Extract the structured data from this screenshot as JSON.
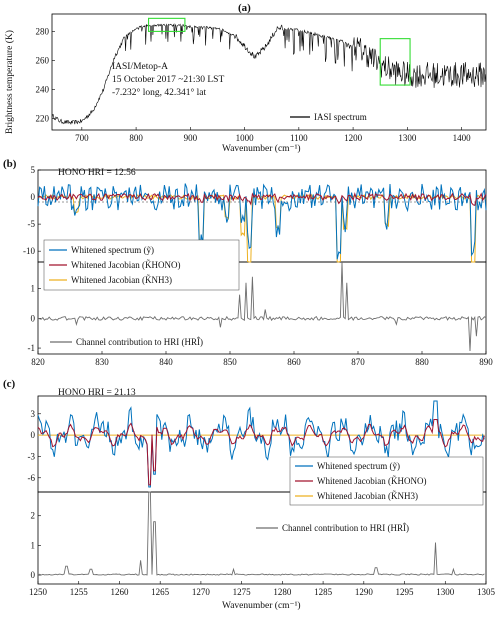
{
  "colors": {
    "spectrum": "#0072BD",
    "jac_hono": "#A2142F",
    "jac_nh3": "#EDB120",
    "contrib": "#6E6E6E",
    "iasi": "#000000",
    "highlight": "#33DD33"
  },
  "panels": {
    "a": {
      "label": "(a)",
      "ylabel": "Brightness temperature (K)",
      "xlabel": "Wavenumber (cm⁻¹)",
      "info_line1": "IASI/Metop-A",
      "info_line2": "15 October 2017  ~21:30 LST",
      "info_line3": "-7.232° long, 42.341° lat",
      "legend": "IASI spectrum"
    },
    "b": {
      "label": "(b)",
      "hri_text": "HONO HRI = 12.56",
      "legend_spectrum": "Whitened spectrum (ỹ)",
      "legend_jac_hono": "Whitened Jacobian (K̃HONO)",
      "legend_jac_nh3": "Whitened Jacobian (K̃NH3)",
      "legend_contrib": "Channel contribution to HRI (HRÎ)"
    },
    "c": {
      "label": "(c)",
      "hri_text": "HONO HRI = 21.13",
      "xlabel": "Wavenumber (cm⁻¹)",
      "legend_spectrum": "Whitened spectrum (ỹ)",
      "legend_jac_hono": "Whitened Jacobian (K̃HONO)",
      "legend_jac_nh3": "Whitened Jacobian (K̃NH3)",
      "legend_contrib": "Channel contribution to HRI (HRÎ)"
    }
  },
  "chart_data": [
    {
      "type": "line",
      "panel": "a",
      "xlim": [
        645,
        1445
      ],
      "ylim": [
        212,
        292
      ],
      "xticks": [
        700,
        800,
        900,
        1000,
        1100,
        1200,
        1300,
        1400
      ],
      "yticks": [
        220,
        240,
        260,
        280
      ],
      "series": [
        {
          "name": "IASI spectrum",
          "envelope_x": [
            645,
            660,
            680,
            700,
            720,
            740,
            760,
            780,
            800,
            820,
            840,
            860,
            880,
            900,
            920,
            940,
            960,
            980,
            1000,
            1020,
            1040,
            1060,
            1080,
            1100,
            1120,
            1140,
            1160,
            1180,
            1200,
            1220,
            1240,
            1260,
            1280,
            1300,
            1320,
            1340,
            1360,
            1380,
            1400,
            1420,
            1445
          ],
          "envelope_y": [
            222,
            218,
            217,
            218,
            225,
            240,
            262,
            277,
            283,
            285,
            285,
            285,
            285,
            284,
            284,
            283,
            282,
            278,
            270,
            262,
            270,
            282,
            283,
            282,
            280,
            278,
            276,
            274,
            270,
            266,
            260,
            255,
            252,
            250,
            250,
            250,
            250,
            250,
            250,
            250,
            250
          ]
        }
      ],
      "highlight_boxes": [
        {
          "x": [
            823,
            890
          ],
          "y": [
            280,
            289
          ]
        },
        {
          "x": [
            1250,
            1305
          ],
          "y": [
            243,
            275
          ]
        }
      ]
    },
    {
      "type": "line",
      "panel": "b-top",
      "xlim": [
        820,
        890
      ],
      "ylim": [
        -12,
        5
      ],
      "yticks": [
        -10,
        -5,
        0,
        5
      ],
      "series": [
        {
          "name": "Whitened spectrum (ỹ)",
          "dips": [
            [
              845.5,
              -8
            ],
            [
              849.5,
              -3
            ],
            [
              852,
              -6
            ],
            [
              853,
              -9
            ],
            [
              857.5,
              -5
            ],
            [
              867,
              -10
            ],
            [
              868,
              -4
            ],
            [
              874.5,
              -4
            ],
            [
              888,
              -10
            ],
            [
              826,
              -3
            ]
          ]
        },
        {
          "name": "Whitened Jacobian (K̃HONO)",
          "amplitude": 1.0
        },
        {
          "name": "Whitened Jacobian (K̃NH3)",
          "dips": [
            [
              845.5,
              -9
            ],
            [
              849.5,
              -4
            ],
            [
              852,
              -7
            ],
            [
              853,
              -12
            ],
            [
              857.5,
              -6
            ],
            [
              867,
              -12
            ],
            [
              868,
              -6
            ],
            [
              874.5,
              -5
            ],
            [
              888,
              -12
            ],
            [
              826,
              -3
            ]
          ]
        }
      ]
    },
    {
      "type": "line",
      "panel": "b-bottom",
      "xlim": [
        820,
        890
      ],
      "ylim": [
        -1.2,
        1.9
      ],
      "xticks": [
        820,
        830,
        840,
        850,
        860,
        870,
        880,
        890
      ],
      "yticks": [
        -1,
        0,
        1
      ],
      "series": [
        {
          "name": "Channel contribution to HRI (HRÎ)",
          "spikes": [
            [
              826,
              -0.2
            ],
            [
              848.5,
              -0.3
            ],
            [
              851.5,
              0.8
            ],
            [
              852.5,
              1.2
            ],
            [
              853.5,
              1.4
            ],
            [
              855.5,
              0.3
            ],
            [
              867.5,
              1.9
            ],
            [
              868.2,
              1.2
            ],
            [
              876,
              -0.2
            ],
            [
              887.5,
              -1.1
            ],
            [
              888.5,
              -0.6
            ]
          ]
        }
      ]
    },
    {
      "type": "line",
      "panel": "c-top",
      "xlim": [
        1250,
        1305
      ],
      "ylim": [
        -8,
        5.5
      ],
      "yticks": [
        -6,
        -3,
        0,
        3
      ],
      "series": [
        {
          "name": "Whitened spectrum (ỹ)",
          "dips": [
            [
              1263.7,
              -7.3
            ],
            [
              1264.3,
              -5.5
            ],
            [
              1298.8,
              4.8
            ]
          ]
        },
        {
          "name": "Whitened Jacobian (K̃HONO)",
          "dips": [
            [
              1263.7,
              -7.0
            ],
            [
              1264.3,
              -5.0
            ],
            [
              1298.8,
              2.2
            ]
          ]
        },
        {
          "name": "Whitened Jacobian (K̃NH3)",
          "amplitude": 0
        }
      ]
    },
    {
      "type": "line",
      "panel": "c-bottom",
      "xlim": [
        1250,
        1305
      ],
      "ylim": [
        -0.3,
        2.8
      ],
      "xticks": [
        1250,
        1255,
        1260,
        1265,
        1270,
        1275,
        1280,
        1285,
        1290,
        1295,
        1300,
        1305
      ],
      "yticks": [
        0,
        1,
        2
      ],
      "series": [
        {
          "name": "Channel contribution to HRI (HRÎ)",
          "spikes": [
            [
              1253.5,
              0.3
            ],
            [
              1256.5,
              0.2
            ],
            [
              1262.6,
              0.5
            ],
            [
              1263.7,
              2.8
            ],
            [
              1264.3,
              1.8
            ],
            [
              1274,
              0.2
            ],
            [
              1291.5,
              0.25
            ],
            [
              1298.8,
              1.1
            ],
            [
              1301,
              0.2
            ]
          ]
        }
      ]
    }
  ]
}
